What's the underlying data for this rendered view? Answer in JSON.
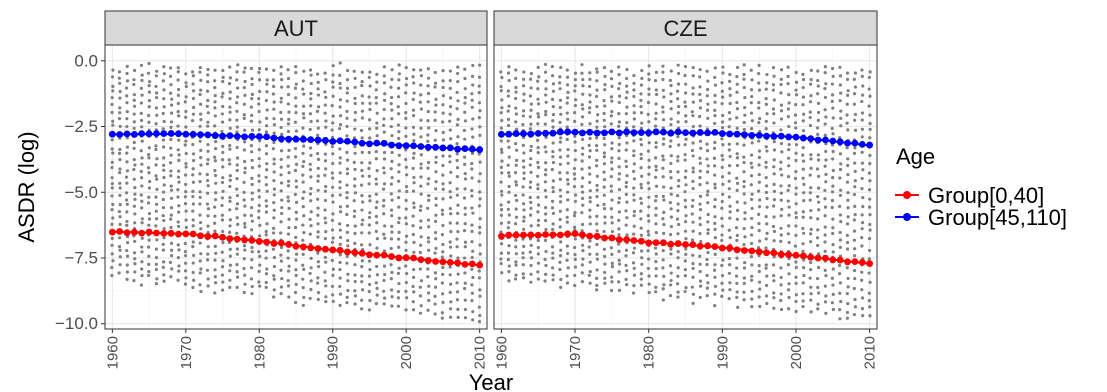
{
  "chart_data": {
    "type": "scatter",
    "xlabel": "Year",
    "ylabel": "ASDR (log)",
    "xlim": [
      1959,
      2011
    ],
    "ylim": [
      -10.2,
      0.6
    ],
    "x_ticks": [
      1960,
      1970,
      1980,
      1990,
      2000,
      2010
    ],
    "y_ticks": [
      0,
      -2.5,
      -5,
      -7.5,
      -10
    ],
    "y_tick_labels": [
      "0.0",
      "−2.5",
      "−5.0",
      "−7.5",
      "−10.0"
    ],
    "facets": [
      "AUT",
      "CZE"
    ],
    "background_point_color": "#7f7f7f",
    "grid": true,
    "legend": {
      "title": "Age",
      "position": "right",
      "entries": [
        {
          "label": "Group[0,40]",
          "color": "#ff0000"
        },
        {
          "label": "Group[45,110]",
          "color": "#0000ff"
        }
      ]
    },
    "series": [
      {
        "facet": "AUT",
        "group": "Group[0,40]",
        "x": [
          1960,
          1970,
          1980,
          1990,
          2000,
          2010
        ],
        "y": [
          -6.5,
          -6.58,
          -6.85,
          -7.2,
          -7.5,
          -7.78
        ]
      },
      {
        "facet": "AUT",
        "group": "Group[45,110]",
        "x": [
          1960,
          1970,
          1980,
          1990,
          2000,
          2010
        ],
        "y": [
          -2.8,
          -2.78,
          -2.9,
          -3.05,
          -3.22,
          -3.4
        ]
      },
      {
        "facet": "CZE",
        "group": "Group[0,40]",
        "x": [
          1960,
          1970,
          1980,
          1990,
          2000,
          2010
        ],
        "y": [
          -6.65,
          -6.6,
          -6.9,
          -7.1,
          -7.4,
          -7.72
        ]
      },
      {
        "facet": "CZE",
        "group": "Group[45,110]",
        "x": [
          1960,
          1970,
          1980,
          1990,
          2000,
          2010
        ],
        "y": [
          -2.8,
          -2.72,
          -2.72,
          -2.75,
          -2.9,
          -3.22
        ]
      }
    ]
  }
}
